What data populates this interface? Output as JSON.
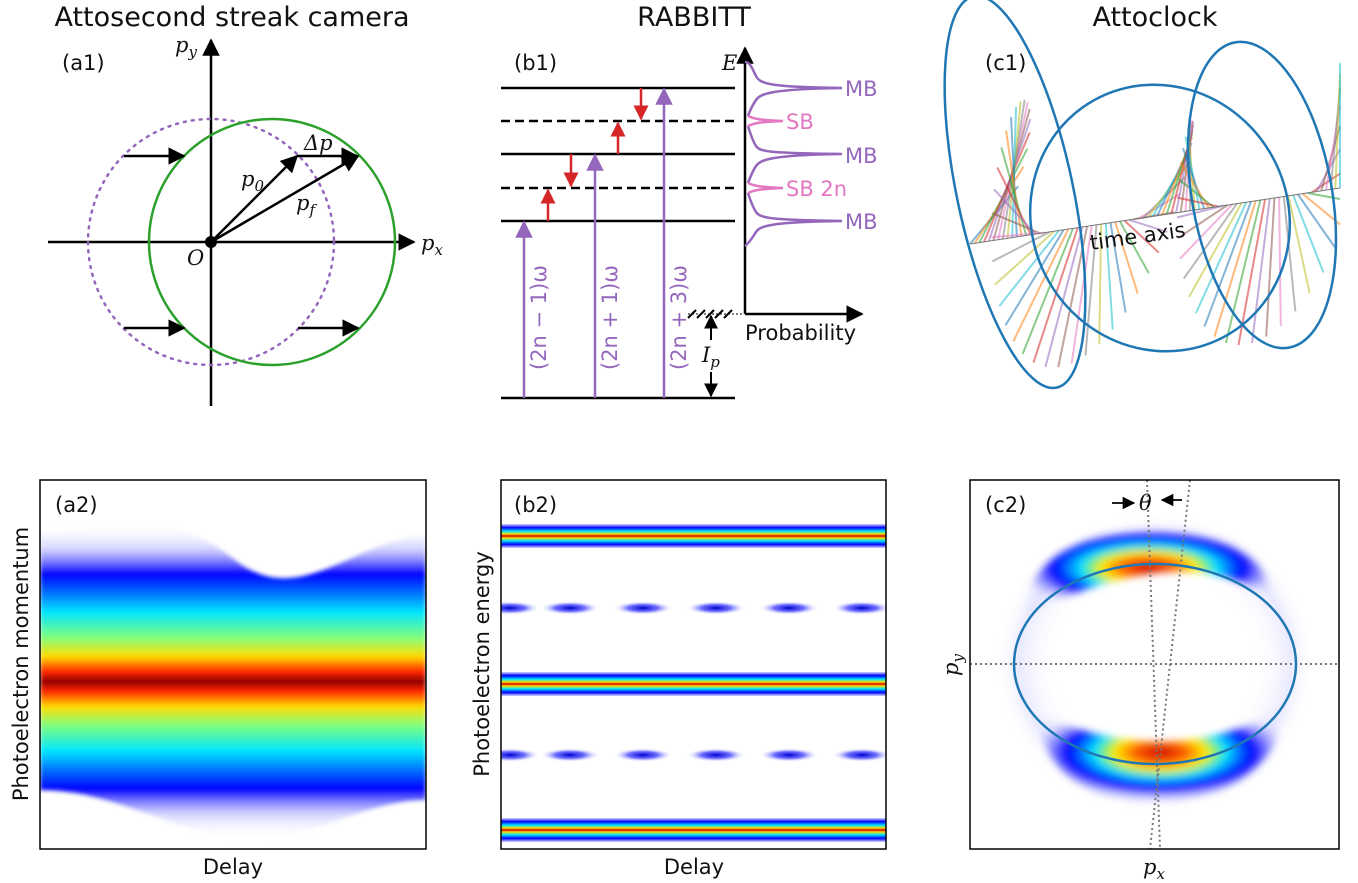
{
  "titles": {
    "a": "Attosecond streak camera",
    "b": "RABBITT",
    "c": "Attoclock"
  },
  "panel_labels": {
    "a1": "(a1)",
    "b1": "(b1)",
    "c1": "(c1)",
    "a2": "(a2)",
    "b2": "(b2)",
    "c2": "(c2)"
  },
  "a1": {
    "axis_x": "p",
    "axis_x_sub": "x",
    "axis_y": "p",
    "axis_y_sub": "y",
    "origin": "O",
    "p0": "p",
    "p0_sub": "0",
    "pf": "p",
    "pf_sub": "f",
    "dp": "Δp"
  },
  "b1": {
    "energy_axis": "E",
    "prob_axis": "Probability",
    "ip": "I",
    "ip_sub": "p",
    "photons": [
      "(2n − 1)ω",
      "(2n + 1)ω",
      "(2n + 3)ω"
    ],
    "peaks": [
      "MB",
      "SB",
      "MB",
      "SB 2n",
      "MB"
    ]
  },
  "c1": {
    "axis_label": "time axis"
  },
  "a2": {
    "xlabel": "Delay",
    "ylabel": "Photoelectron momentum"
  },
  "b2": {
    "xlabel": "Delay",
    "ylabel": "Photoelectron energy"
  },
  "c2": {
    "xlabel": "p",
    "xlabel_sub": "x",
    "ylabel": "p",
    "ylabel_sub": "y",
    "angle": "θ"
  },
  "colors": {
    "green_circle": "#2ca02c",
    "purple": "#9467bd",
    "pink": "#e377c2",
    "red_arrow": "#d62728",
    "blue_line": "#1f77b4"
  }
}
